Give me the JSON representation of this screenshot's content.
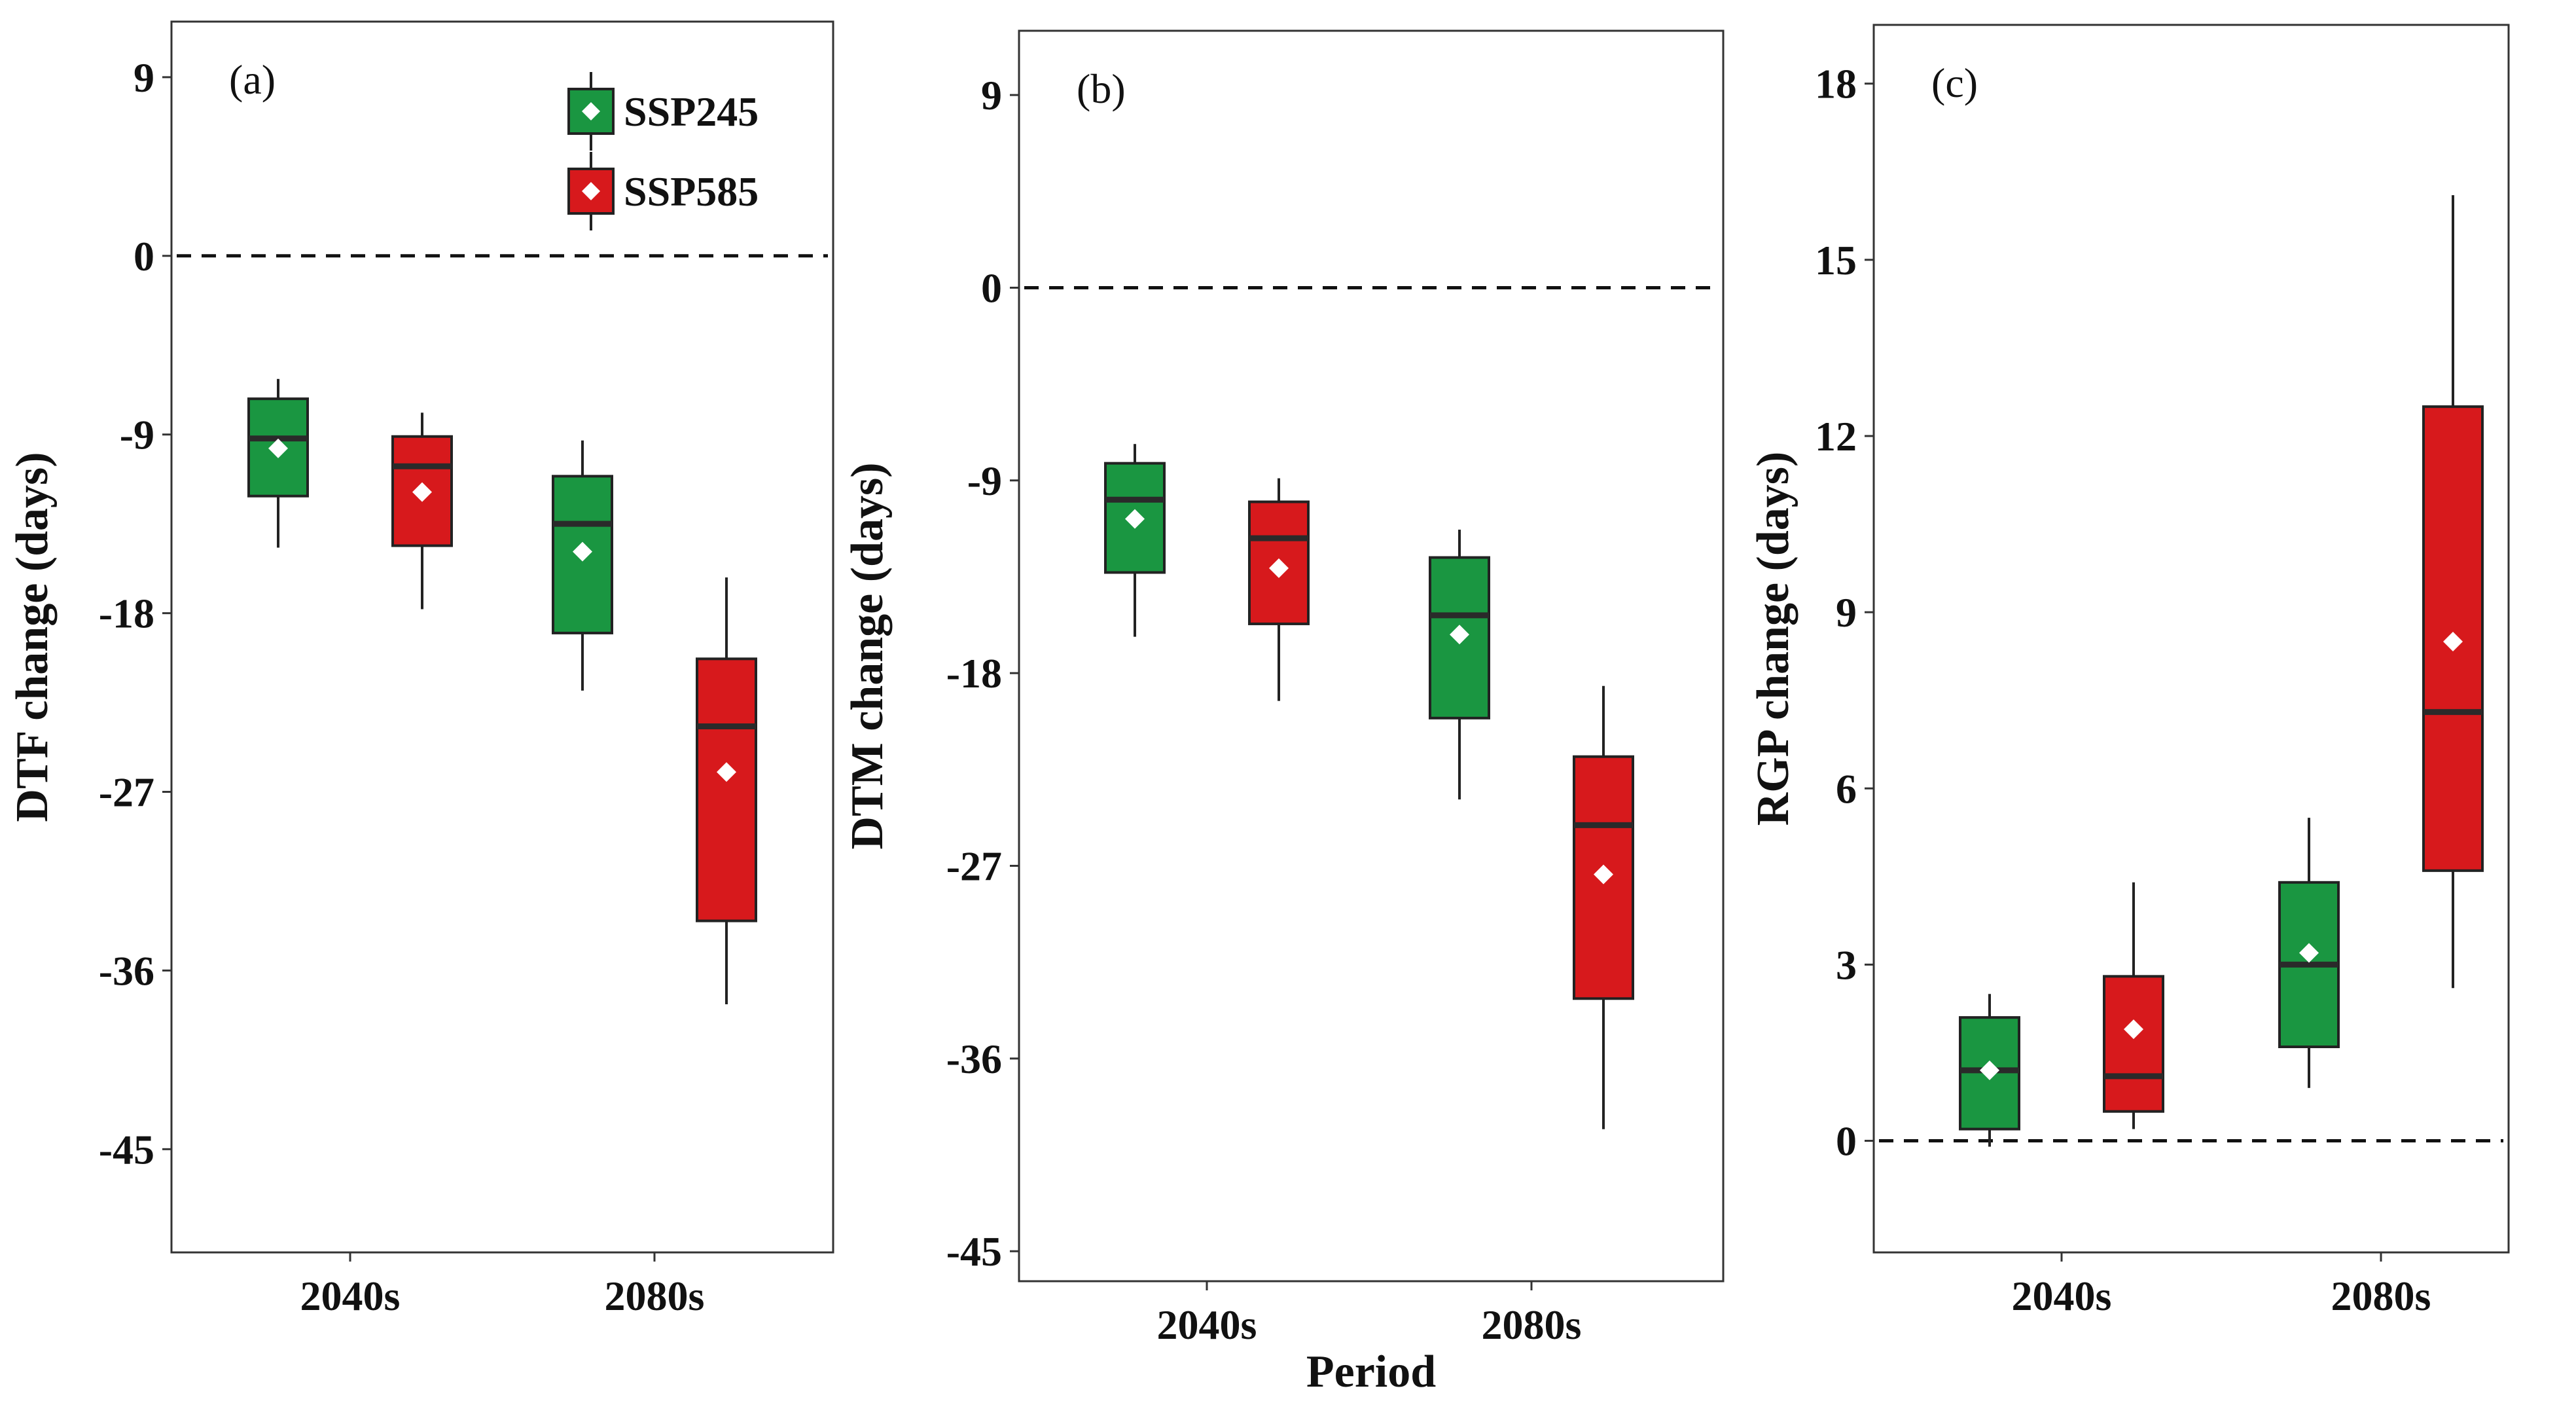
{
  "chart_data": [
    {
      "type": "boxplot",
      "panel_label": "(a)",
      "ylabel": "DTF change (days)",
      "xlabel": "",
      "categories": [
        "2040s",
        "2080s"
      ],
      "ylim": [
        -50.2,
        11.8
      ],
      "yticks": [
        9,
        0,
        -9,
        -18,
        -27,
        -36,
        -45
      ],
      "ytick_labels": [
        "9",
        "0",
        "-9",
        "-18",
        "-27",
        "-36",
        "-45"
      ],
      "reference_line": 0,
      "legend": {
        "position": "top-right",
        "entries": [
          "SSP245",
          "SSP585"
        ]
      },
      "series": [
        {
          "name": "SSP245",
          "boxes": [
            {
              "category": "2040s",
              "whisker_low": -14.7,
              "q1": -12.1,
              "median": -9.2,
              "q3": -7.2,
              "whisker_high": -6.2,
              "mean": -9.7
            },
            {
              "category": "2080s",
              "whisker_low": -21.9,
              "q1": -19.0,
              "median": -13.5,
              "q3": -11.1,
              "whisker_high": -9.3,
              "mean": -14.9
            }
          ]
        },
        {
          "name": "SSP585",
          "boxes": [
            {
              "category": "2040s",
              "whisker_low": -17.8,
              "q1": -14.6,
              "median": -10.6,
              "q3": -9.1,
              "whisker_high": -7.9,
              "mean": -11.9
            },
            {
              "category": "2080s",
              "whisker_low": -37.7,
              "q1": -33.5,
              "median": -23.7,
              "q3": -20.3,
              "whisker_high": -16.2,
              "mean": -26.0
            }
          ]
        }
      ]
    },
    {
      "type": "boxplot",
      "panel_label": "(b)",
      "ylabel": "DTM change (days)",
      "xlabel": "Period",
      "categories": [
        "2040s",
        "2080s"
      ],
      "ylim": [
        -46.4,
        12.0
      ],
      "yticks": [
        9,
        0,
        -9,
        -18,
        -27,
        -36,
        -45
      ],
      "ytick_labels": [
        "9",
        "0",
        "-9",
        "-18",
        "-27",
        "-36",
        "-45"
      ],
      "reference_line": 0,
      "series": [
        {
          "name": "SSP245",
          "boxes": [
            {
              "category": "2040s",
              "whisker_low": -16.3,
              "q1": -13.3,
              "median": -9.9,
              "q3": -8.2,
              "whisker_high": -7.3,
              "mean": -10.8
            },
            {
              "category": "2080s",
              "whisker_low": -23.9,
              "q1": -20.1,
              "median": -15.3,
              "q3": -12.6,
              "whisker_high": -11.3,
              "mean": -16.2
            }
          ]
        },
        {
          "name": "SSP585",
          "boxes": [
            {
              "category": "2040s",
              "whisker_low": -19.3,
              "q1": -15.7,
              "median": -11.7,
              "q3": -10.0,
              "whisker_high": -8.9,
              "mean": -13.1
            },
            {
              "category": "2080s",
              "whisker_low": -39.3,
              "q1": -33.2,
              "median": -25.1,
              "q3": -21.9,
              "whisker_high": -18.6,
              "mean": -27.4
            }
          ]
        }
      ]
    },
    {
      "type": "boxplot",
      "panel_label": "(c)",
      "ylabel": "RGP change (days)",
      "xlabel": "",
      "categories": [
        "2040s",
        "2080s"
      ],
      "ylim": [
        -1.9,
        19.0
      ],
      "yticks": [
        18,
        15,
        12,
        9,
        6,
        3,
        0
      ],
      "ytick_labels": [
        "18",
        "15",
        "12",
        "9",
        "6",
        "3",
        "0"
      ],
      "reference_line": 0,
      "series": [
        {
          "name": "SSP245",
          "boxes": [
            {
              "category": "2040s",
              "whisker_low": -0.1,
              "q1": 0.2,
              "median": 1.2,
              "q3": 2.1,
              "whisker_high": 2.5,
              "mean": 1.2
            },
            {
              "category": "2080s",
              "whisker_low": 0.9,
              "q1": 1.6,
              "median": 3.0,
              "q3": 4.4,
              "whisker_high": 5.5,
              "mean": 3.2
            }
          ]
        },
        {
          "name": "SSP585",
          "boxes": [
            {
              "category": "2040s",
              "whisker_low": 0.2,
              "q1": 0.5,
              "median": 1.1,
              "q3": 2.8,
              "whisker_high": 4.4,
              "mean": 1.9
            },
            {
              "category": "2080s",
              "whisker_low": 2.6,
              "q1": 4.6,
              "median": 7.3,
              "q3": 12.5,
              "whisker_high": 16.1,
              "mean": 8.5
            }
          ]
        }
      ]
    }
  ],
  "colors": {
    "SSP245": "#1a9641",
    "SSP585": "#d7191c",
    "box_stroke": "#222222",
    "median_line": "#2a2a2a",
    "mean_marker": "#ffffff",
    "frame": "#333333",
    "reference_line": "#111111"
  }
}
